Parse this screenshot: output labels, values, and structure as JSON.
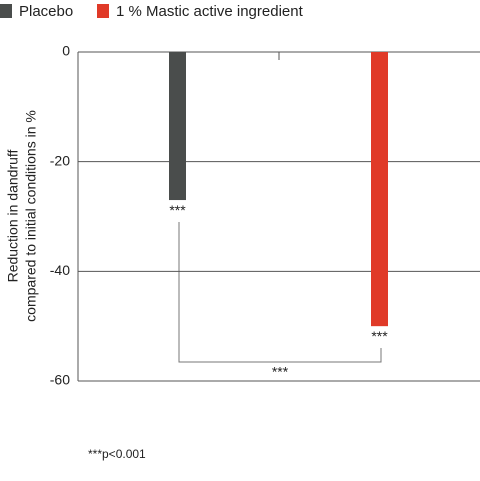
{
  "chart_data": {
    "type": "bar",
    "y_label": [
      "Reduction in dandruff",
      "compared to initial conditions in %"
    ],
    "series": [
      {
        "name": "Placebo",
        "color": "#4a4d4c",
        "values": [
          -27
        ]
      },
      {
        "name": "1 % Mastic active ingredient",
        "color": "#e03a28",
        "values": [
          -50
        ]
      }
    ],
    "value_annotations": [
      "***",
      "***"
    ],
    "comparison_annotation": "***",
    "footnote": "***p<0.001",
    "ylim": [
      -60,
      0
    ],
    "yticks": [
      0,
      -20,
      -40,
      -60
    ],
    "grid": true
  }
}
